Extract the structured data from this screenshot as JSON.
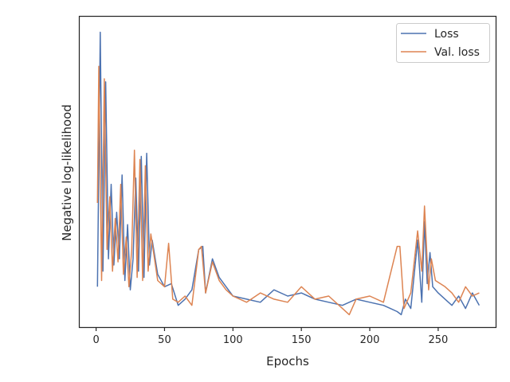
{
  "chart_data": {
    "type": "line",
    "xlabel": "Epochs",
    "ylabel": "Negative log-likelihood",
    "xlim": [
      -12,
      292
    ],
    "ylim": [
      0,
      100
    ],
    "x_ticks": [
      0,
      50,
      100,
      150,
      200,
      250
    ],
    "x_tick_labels": [
      "0",
      "50",
      "100",
      "150",
      "200",
      "250"
    ],
    "y_ticks_shown": false,
    "grid": false,
    "legend_position": "top-right",
    "series": [
      {
        "name": "Loss",
        "color": "#4c72b0",
        "x": [
          1,
          3,
          5,
          7,
          9,
          11,
          13,
          15,
          17,
          19,
          21,
          23,
          25,
          27,
          29,
          31,
          33,
          35,
          37,
          39,
          41,
          45,
          50,
          55,
          60,
          65,
          70,
          75,
          78,
          80,
          85,
          90,
          95,
          100,
          110,
          120,
          130,
          140,
          150,
          160,
          170,
          180,
          190,
          200,
          210,
          215,
          220,
          223,
          226,
          230,
          235,
          238,
          240,
          242,
          244,
          246,
          250,
          255,
          260,
          265,
          270,
          275,
          280
        ],
        "y": [
          13,
          95,
          18,
          79,
          22,
          46,
          20,
          37,
          22,
          49,
          15,
          33,
          12,
          22,
          48,
          18,
          55,
          16,
          56,
          20,
          28,
          17,
          13,
          14,
          7,
          9,
          12,
          25,
          26,
          11,
          22,
          16,
          13,
          10,
          9,
          8,
          12,
          10,
          11,
          9,
          8,
          7,
          9,
          8,
          7,
          6,
          5,
          4,
          9,
          6,
          28,
          8,
          34,
          14,
          24,
          13,
          11,
          9,
          7,
          10,
          6,
          11,
          7
        ]
      },
      {
        "name": "Val. loss",
        "color": "#dd8452",
        "x": [
          1,
          2,
          4,
          6,
          8,
          10,
          12,
          14,
          16,
          18,
          20,
          22,
          24,
          26,
          28,
          30,
          32,
          34,
          36,
          38,
          40,
          45,
          50,
          53,
          56,
          60,
          65,
          70,
          75,
          77,
          80,
          85,
          90,
          95,
          100,
          110,
          120,
          130,
          140,
          150,
          160,
          170,
          180,
          185,
          190,
          200,
          210,
          220,
          222,
          225,
          230,
          235,
          238,
          240,
          243,
          245,
          248,
          255,
          260,
          265,
          270,
          275,
          280
        ],
        "y": [
          40,
          84,
          15,
          80,
          25,
          42,
          18,
          35,
          21,
          46,
          17,
          29,
          13,
          25,
          57,
          16,
          54,
          15,
          52,
          18,
          30,
          15,
          13,
          27,
          9,
          8,
          10,
          7,
          25,
          26,
          11,
          21,
          15,
          12,
          10,
          8,
          11,
          9,
          8,
          13,
          9,
          10,
          6,
          4,
          9,
          10,
          8,
          26,
          26,
          6,
          11,
          31,
          18,
          39,
          12,
          22,
          15,
          13,
          11,
          8,
          13,
          10,
          11
        ]
      }
    ]
  }
}
